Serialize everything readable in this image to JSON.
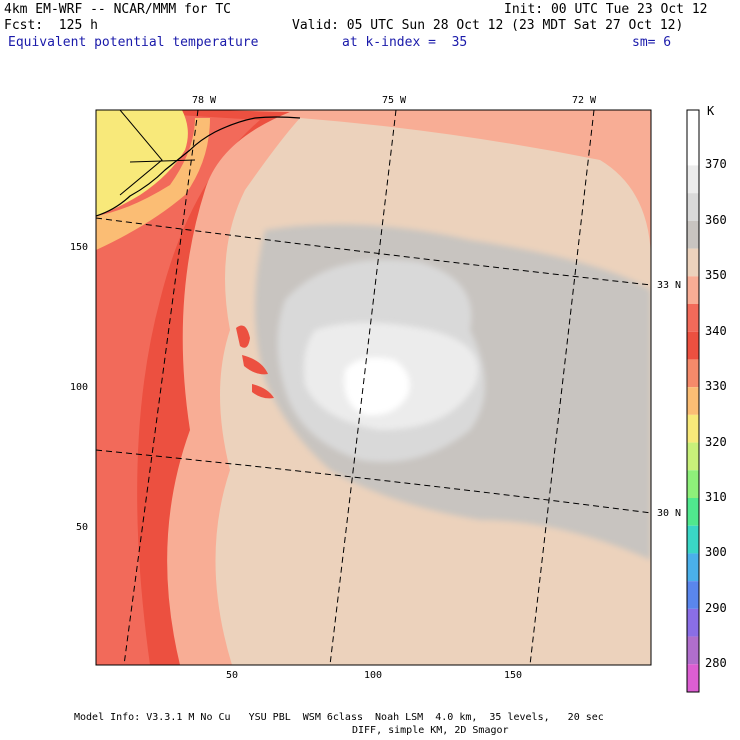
{
  "header": {
    "model": "4km EM-WRF -- NCAR/MMM for TC",
    "init": "Init: 00 UTC Tue 23 Oct 12",
    "fcst": "Fcst:  125 h",
    "valid": "Valid: 05 UTC Sun 28 Oct 12 (23 MDT Sat 27 Oct 12)",
    "field": "Equivalent potential temperature",
    "level": "at k-index =  35",
    "smooth": "sm= 6"
  },
  "map": {
    "lon_labels": [
      "78 W",
      "75 W",
      "72 W"
    ],
    "lat_labels": [
      "33 N",
      "30 N"
    ],
    "x_ticks": [
      "50",
      "100",
      "150"
    ],
    "y_ticks": [
      "150",
      "100",
      "50"
    ],
    "x_range": [
      0,
      200
    ],
    "y_range": [
      0,
      200
    ]
  },
  "colorbar": {
    "unit": "K",
    "levels": [
      {
        "label": "",
        "color": "#ffffff"
      },
      {
        "label": "370",
        "color": "#ffffff"
      },
      {
        "label": "",
        "color": "#ececec"
      },
      {
        "label": "360",
        "color": "#d9d9d9"
      },
      {
        "label": "",
        "color": "#c8c4c0"
      },
      {
        "label": "350",
        "color": "#ecd2bc"
      },
      {
        "label": "",
        "color": "#f8ad95"
      },
      {
        "label": "340",
        "color": "#f26a5a"
      },
      {
        "label": "",
        "color": "#ec5040"
      },
      {
        "label": "330",
        "color": "#f58a6a"
      },
      {
        "label": "",
        "color": "#fbbd74"
      },
      {
        "label": "320",
        "color": "#f8e97a"
      },
      {
        "label": "",
        "color": "#c8f07a"
      },
      {
        "label": "310",
        "color": "#8ef07a"
      },
      {
        "label": "",
        "color": "#50e88e"
      },
      {
        "label": "300",
        "color": "#3ad6c6"
      },
      {
        "label": "",
        "color": "#4ab0ea"
      },
      {
        "label": "290",
        "color": "#5a86ec"
      },
      {
        "label": "",
        "color": "#8a6ee6"
      },
      {
        "label": "280",
        "color": "#b06ecc"
      },
      {
        "label": "",
        "color": "#dc5ed2"
      }
    ]
  },
  "footer": {
    "line1": "Model Info: V3.3.1 M No Cu   YSU PBL  WSM 6class  Noah LSM  4.0 km,  35 levels,   20 sec",
    "line2": "DIFF, simple KM, 2D Smagor"
  },
  "colors": {
    "land": "#f8e97a",
    "outer": "#f26a5a",
    "deep_red": "#ec5040",
    "salmon": "#f8ad95",
    "tan": "#ecd2bc",
    "grey": "#c8c4c0",
    "light_grey": "#d9d9d9",
    "lighter": "#ececec",
    "white": "#ffffff"
  }
}
